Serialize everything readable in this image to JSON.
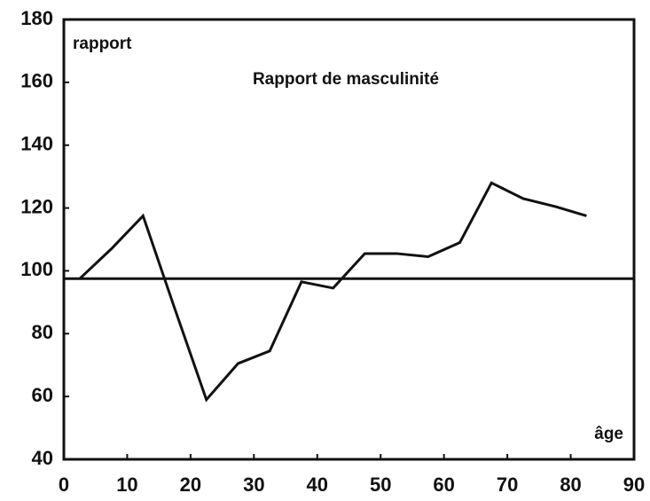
{
  "chart_data": {
    "type": "line",
    "title": "Rapport de masculinité",
    "y_label": "rapport",
    "x_label": "âge",
    "x": [
      2.5,
      7.5,
      12.5,
      17.5,
      22.5,
      27.5,
      32.5,
      37.5,
      42.5,
      47.5,
      52.5,
      57.5,
      62.5,
      67.5,
      72.5,
      77.5,
      82.5
    ],
    "values": [
      97.5,
      107,
      117.5,
      88,
      59,
      70.5,
      74.5,
      96.5,
      94.5,
      105.5,
      105.5,
      104.5,
      109,
      128,
      123,
      120.5,
      117.5
    ],
    "reference_line": 97.5,
    "color": "#111111",
    "xlim": [
      0,
      90
    ],
    "xticks": [
      0,
      10,
      20,
      30,
      40,
      50,
      60,
      70,
      80,
      90
    ],
    "ylim": [
      40,
      180
    ],
    "yticks": [
      40,
      60,
      80,
      100,
      120,
      140,
      160,
      180
    ],
    "grid": false
  }
}
